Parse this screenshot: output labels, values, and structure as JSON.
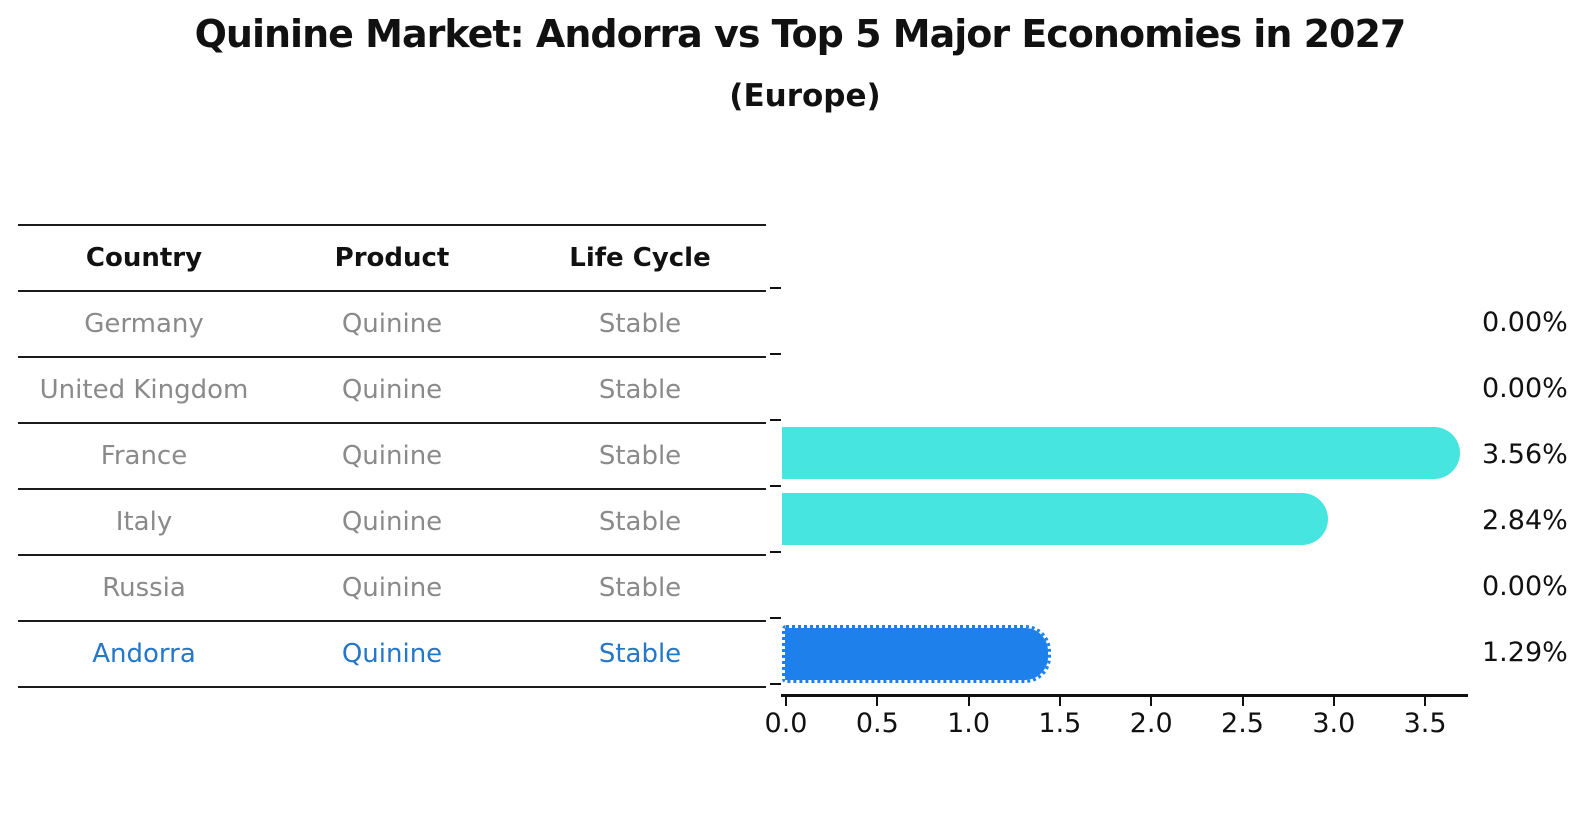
{
  "title": "Quinine Market: Andorra vs Top 5 Major Economies in 2027",
  "subtitle": "(Europe)",
  "table": {
    "headers": [
      "Country",
      "Product",
      "Life Cycle"
    ],
    "rows": [
      {
        "country": "Germany",
        "product": "Quinine",
        "life_cycle": "Stable",
        "highlight": false
      },
      {
        "country": "United Kingdom",
        "product": "Quinine",
        "life_cycle": "Stable",
        "highlight": false
      },
      {
        "country": "France",
        "product": "Quinine",
        "life_cycle": "Stable",
        "highlight": false
      },
      {
        "country": "Italy",
        "product": "Quinine",
        "life_cycle": "Stable",
        "highlight": false
      },
      {
        "country": "Russia",
        "product": "Quinine",
        "life_cycle": "Stable",
        "highlight": false
      },
      {
        "country": "Andorra",
        "product": "Quinine",
        "life_cycle": "Stable",
        "highlight": true
      }
    ]
  },
  "chart_data": {
    "type": "bar",
    "orientation": "horizontal",
    "title": "Quinine Market: Andorra vs Top 5 Major Economies in 2027",
    "subtitle": "(Europe)",
    "categories": [
      "Germany",
      "United Kingdom",
      "France",
      "Italy",
      "Russia",
      "Andorra"
    ],
    "values": [
      0.0,
      0.0,
      3.56,
      2.84,
      0.0,
      1.29
    ],
    "value_labels": [
      "0.00%",
      "0.00%",
      "3.56%",
      "2.84%",
      "0.00%",
      "1.29%"
    ],
    "x_ticks": [
      "0.0",
      "0.5",
      "1.0",
      "1.5",
      "2.0",
      "2.5",
      "3.0",
      "3.5"
    ],
    "xlim": [
      0,
      3.75
    ],
    "grid": false,
    "legend": "none",
    "bar_color": "#46E5E0",
    "highlight_color": "#1E80EA",
    "highlight_index": 5,
    "highlight_edge_style": "dotted"
  },
  "colors": {
    "line": "#1a1a1a",
    "header_text": "#111111",
    "row_text": "#8a8a8a",
    "highlight_text": "#2577c8",
    "bar": "#46E5E0",
    "highlight_bar": "#1E80EA",
    "value_label": "#111111"
  }
}
